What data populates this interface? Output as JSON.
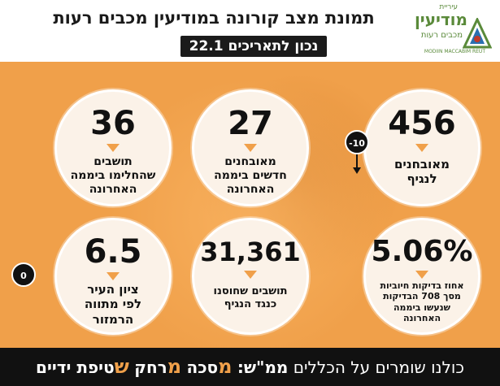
{
  "header": {
    "title": "תמונת מצב קורונה במודיעין מכבים רעות",
    "date_line": "נכון לתאריכים 22.1"
  },
  "logo": {
    "top_word": "עיריית",
    "main_word": "מודיעין",
    "sub_word": "מכבים רעות",
    "english": "MODIIN MACCABIM REUT",
    "colors": {
      "green": "#5a8a3a",
      "blue": "#2a6fb0",
      "red": "#c0392b"
    }
  },
  "stats": [
    {
      "value": "456",
      "label_lines": [
        "מאובחנים",
        "לנגיף"
      ]
    },
    {
      "value": "27",
      "label_lines": [
        "מאובחנים",
        "חדשים ביממה",
        "האחרונה"
      ]
    },
    {
      "value": "36",
      "label_lines": [
        "תושבים",
        "שהחלימו ביממה",
        "האחרונה"
      ]
    },
    {
      "value": "5.06%",
      "label_lines": [
        "אחוז בדיקות חיוביות",
        "מסך 708 הבדיקות",
        "שנעשו ביממה",
        "האחרונה"
      ]
    },
    {
      "value": "31,361",
      "label_lines": [
        "תושבים שחוסנו",
        "כנגד הנגיף"
      ]
    },
    {
      "value": "6.5",
      "label_lines": [
        "ציון העיר",
        "לפי מתווה",
        "הרמזור"
      ]
    }
  ],
  "badges": {
    "change": "-10",
    "zero": "0"
  },
  "footer": {
    "intro": "כולנו שומרים על הכללים",
    "mamash": "ממ\"ש:",
    "w1_first": "מ",
    "w1_rest": "סכה",
    "w2_first": "מ",
    "w2_rest": "רחק",
    "w3_first": "ש",
    "w3_rest": "טיפת ידיים"
  },
  "colors": {
    "accent": "#f0a04a",
    "dark": "#111111",
    "circle_fill": "#fbf2e8"
  }
}
